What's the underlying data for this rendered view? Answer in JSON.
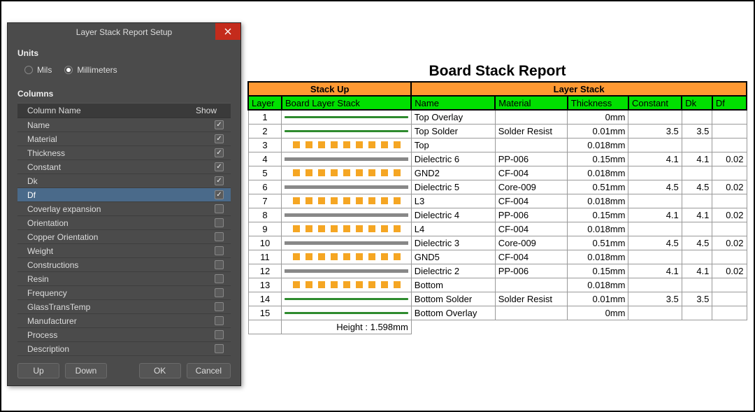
{
  "dialog": {
    "title": "Layer Stack Report Setup",
    "units_label": "Units",
    "units": {
      "mils": "Mils",
      "millimeters": "Millimeters",
      "selected": "millimeters"
    },
    "columns_label": "Columns",
    "columns_header": {
      "name": "Column Name",
      "show": "Show"
    },
    "columns": [
      {
        "label": "Name",
        "checked": true,
        "selected": false
      },
      {
        "label": "Material",
        "checked": true,
        "selected": false
      },
      {
        "label": "Thickness",
        "checked": true,
        "selected": false
      },
      {
        "label": "Constant",
        "checked": true,
        "selected": false
      },
      {
        "label": "Dk",
        "checked": true,
        "selected": false
      },
      {
        "label": "Df",
        "checked": true,
        "selected": true
      },
      {
        "label": "Coverlay expansion",
        "checked": false,
        "selected": false
      },
      {
        "label": "Orientation",
        "checked": false,
        "selected": false
      },
      {
        "label": "Copper Orientation",
        "checked": false,
        "selected": false
      },
      {
        "label": "Weight",
        "checked": false,
        "selected": false
      },
      {
        "label": "Constructions",
        "checked": false,
        "selected": false
      },
      {
        "label": "Resin",
        "checked": false,
        "selected": false
      },
      {
        "label": "Frequency",
        "checked": false,
        "selected": false
      },
      {
        "label": "GlassTransTemp",
        "checked": false,
        "selected": false
      },
      {
        "label": "Manufacturer",
        "checked": false,
        "selected": false
      },
      {
        "label": "Process",
        "checked": false,
        "selected": false
      },
      {
        "label": "Description",
        "checked": false,
        "selected": false
      }
    ],
    "buttons": {
      "up": "Up",
      "down": "Down",
      "ok": "OK",
      "cancel": "Cancel"
    }
  },
  "report": {
    "title": "Board Stack Report",
    "group_headers": {
      "stackup": "Stack Up",
      "layerstack": "Layer Stack"
    },
    "columns": [
      "Layer",
      "Board Layer Stack",
      "Name",
      "Material",
      "Thickness",
      "Constant",
      "Dk",
      "Df"
    ],
    "colors": {
      "orange": "#ff9933",
      "green_header": "#00e000",
      "square": "#f5a623",
      "gray_line": "#888888",
      "green_line": "#2e8b2e"
    },
    "rows": [
      {
        "layer": 1,
        "graphic": "green",
        "name": "Top Overlay",
        "material": "",
        "thickness": "0mm",
        "constant": "",
        "dk": "",
        "df": ""
      },
      {
        "layer": 2,
        "graphic": "green",
        "name": "Top Solder",
        "material": "Solder Resist",
        "thickness": "0.01mm",
        "constant": "3.5",
        "dk": "3.5",
        "df": ""
      },
      {
        "layer": 3,
        "graphic": "squares",
        "name": "Top",
        "material": "",
        "thickness": "0.018mm",
        "constant": "",
        "dk": "",
        "df": ""
      },
      {
        "layer": 4,
        "graphic": "gray",
        "name": "Dielectric 6",
        "material": "PP-006",
        "thickness": "0.15mm",
        "constant": "4.1",
        "dk": "4.1",
        "df": "0.02"
      },
      {
        "layer": 5,
        "graphic": "squares",
        "name": "GND2",
        "material": "CF-004",
        "thickness": "0.018mm",
        "constant": "",
        "dk": "",
        "df": ""
      },
      {
        "layer": 6,
        "graphic": "gray",
        "name": "Dielectric 5",
        "material": "Core-009",
        "thickness": "0.51mm",
        "constant": "4.5",
        "dk": "4.5",
        "df": "0.02"
      },
      {
        "layer": 7,
        "graphic": "squares",
        "name": "L3",
        "material": "CF-004",
        "thickness": "0.018mm",
        "constant": "",
        "dk": "",
        "df": ""
      },
      {
        "layer": 8,
        "graphic": "gray",
        "name": "Dielectric 4",
        "material": "PP-006",
        "thickness": "0.15mm",
        "constant": "4.1",
        "dk": "4.1",
        "df": "0.02"
      },
      {
        "layer": 9,
        "graphic": "squares",
        "name": "L4",
        "material": "CF-004",
        "thickness": "0.018mm",
        "constant": "",
        "dk": "",
        "df": ""
      },
      {
        "layer": 10,
        "graphic": "gray",
        "name": "Dielectric 3",
        "material": "Core-009",
        "thickness": "0.51mm",
        "constant": "4.5",
        "dk": "4.5",
        "df": "0.02"
      },
      {
        "layer": 11,
        "graphic": "squares",
        "name": "GND5",
        "material": "CF-004",
        "thickness": "0.018mm",
        "constant": "",
        "dk": "",
        "df": ""
      },
      {
        "layer": 12,
        "graphic": "gray",
        "name": "Dielectric 2",
        "material": "PP-006",
        "thickness": "0.15mm",
        "constant": "4.1",
        "dk": "4.1",
        "df": "0.02"
      },
      {
        "layer": 13,
        "graphic": "squares",
        "name": "Bottom",
        "material": "",
        "thickness": "0.018mm",
        "constant": "",
        "dk": "",
        "df": ""
      },
      {
        "layer": 14,
        "graphic": "green",
        "name": "Bottom Solder",
        "material": "Solder Resist",
        "thickness": "0.01mm",
        "constant": "3.5",
        "dk": "3.5",
        "df": ""
      },
      {
        "layer": 15,
        "graphic": "green",
        "name": "Bottom Overlay",
        "material": "",
        "thickness": "0mm",
        "constant": "",
        "dk": "",
        "df": ""
      }
    ],
    "height_label": "Height : 1.598mm"
  }
}
